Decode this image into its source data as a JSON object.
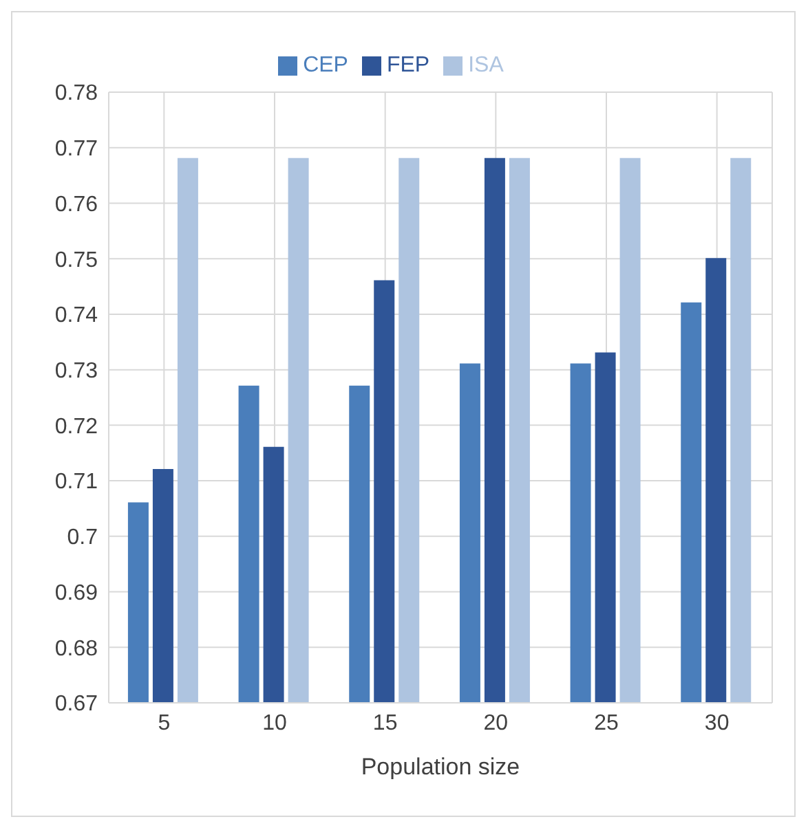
{
  "chart_data": {
    "type": "bar",
    "xlabel": "Population size",
    "categories": [
      "5",
      "10",
      "15",
      "20",
      "25",
      "30"
    ],
    "series": [
      {
        "name": "CEP",
        "color": "#4a7ebb",
        "values": [
          0.706,
          0.727,
          0.727,
          0.731,
          0.731,
          0.742
        ]
      },
      {
        "name": "FEP",
        "color": "#2f5597",
        "values": [
          0.712,
          0.716,
          0.746,
          0.768,
          0.733,
          0.75
        ]
      },
      {
        "name": "ISA",
        "color": "#aec4e0",
        "values": [
          0.768,
          0.768,
          0.768,
          0.768,
          0.768,
          0.768
        ]
      }
    ],
    "ylim": [
      0.67,
      0.78
    ],
    "yticks": [
      0.67,
      0.68,
      0.69,
      0.7,
      0.71,
      0.72,
      0.73,
      0.74,
      0.75,
      0.76,
      0.77,
      0.78
    ],
    "grid": true,
    "legend": "top"
  }
}
